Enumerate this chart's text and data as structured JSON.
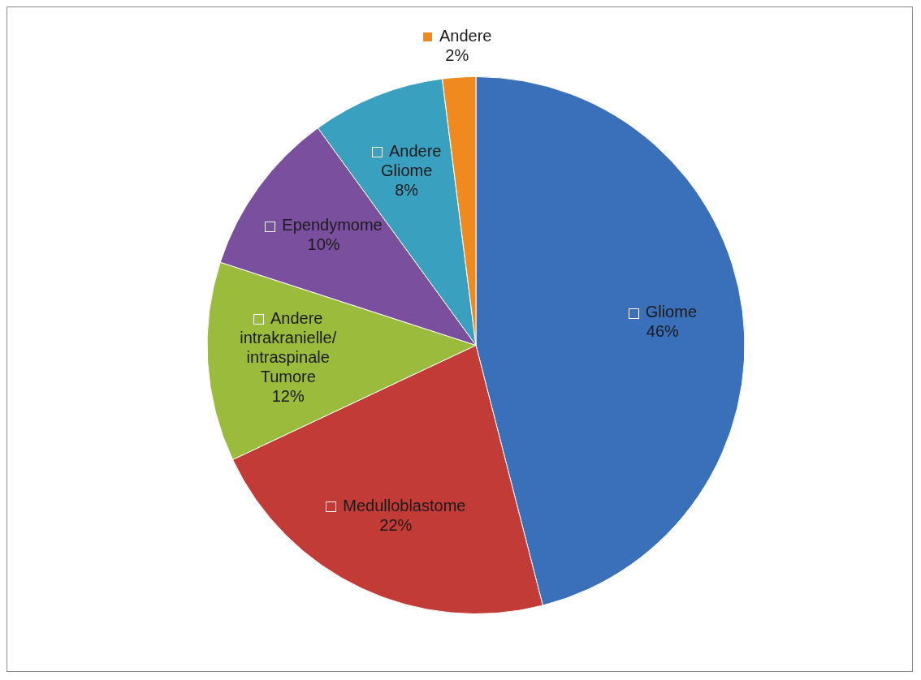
{
  "chart_data": {
    "type": "pie",
    "categories": [
      "Gliome",
      "Medulloblastome",
      "Andere intrakranielle/intraspinale Tumore",
      "Ependymome",
      "Andere Gliome",
      "Andere"
    ],
    "values": [
      46,
      22,
      12,
      10,
      8,
      2
    ],
    "value_labels": [
      "46%",
      "22%",
      "12%",
      "10%",
      "8%",
      "2%"
    ],
    "colors": [
      "#3a6fba",
      "#c23b36",
      "#9bbb3c",
      "#7a4f9e",
      "#3aa0bf",
      "#f08a1e"
    ],
    "legend": "center"
  }
}
